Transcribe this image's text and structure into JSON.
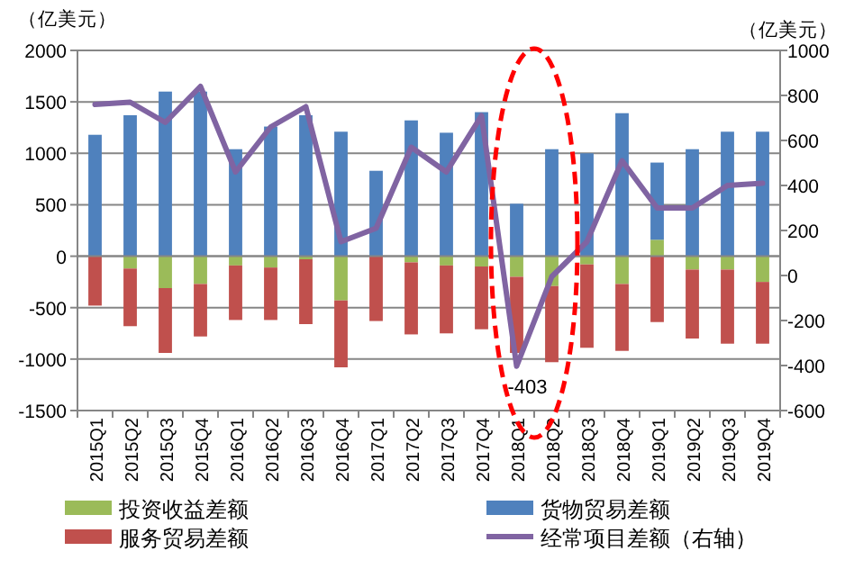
{
  "chart_data": {
    "type": "bar",
    "stacked": true,
    "ylabel": "（亿美元）",
    "y2label": "（亿美元）",
    "categories": [
      "2015Q1",
      "2015Q2",
      "2015Q3",
      "2015Q4",
      "2016Q1",
      "2016Q2",
      "2016Q3",
      "2016Q4",
      "2017Q1",
      "2017Q2",
      "2017Q3",
      "2017Q4",
      "2018Q1",
      "2018Q2",
      "2018Q3",
      "2018Q4",
      "2019Q1",
      "2019Q2",
      "2019Q3",
      "2019Q4"
    ],
    "series": [
      {
        "name": "投资收益差额",
        "color": "#9bbb59",
        "values": [
          null,
          -120,
          -310,
          -270,
          -90,
          -110,
          -30,
          -430,
          null,
          -60,
          -90,
          -100,
          -200,
          -290,
          -80,
          -270,
          160,
          -130,
          -130,
          -250
        ]
      },
      {
        "name": "货物贸易差额",
        "color": "#4f81bd",
        "values": [
          1180,
          1370,
          1600,
          1600,
          1040,
          1260,
          1370,
          1210,
          830,
          1320,
          1200,
          1400,
          510,
          1040,
          1000,
          1390,
          750,
          1040,
          1210,
          1210
        ]
      },
      {
        "name": "服务贸易差额",
        "color": "#c0504d",
        "values": [
          -480,
          -560,
          -630,
          -510,
          -530,
          -510,
          -630,
          -650,
          -630,
          -700,
          -660,
          -610,
          -740,
          -740,
          -810,
          -650,
          -640,
          -670,
          -720,
          -600
        ]
      },
      {
        "name": "经常项目差额（右轴）",
        "color": "#8064a2",
        "type": "line",
        "axis": "y2",
        "values": [
          760,
          770,
          680,
          840,
          460,
          660,
          750,
          150,
          210,
          570,
          460,
          710,
          -403,
          -5,
          150,
          510,
          300,
          300,
          400,
          410
        ],
        "value_labels": [
          null,
          null,
          null,
          null,
          null,
          null,
          null,
          null,
          null,
          null,
          null,
          null,
          "-403",
          null,
          null,
          null,
          null,
          null,
          null,
          null
        ]
      }
    ],
    "ylim": [
      -1500,
      2000
    ],
    "yticks": [
      -1500,
      -1000,
      -500,
      0,
      500,
      1000,
      1500,
      2000
    ],
    "y2lim": [
      -600,
      1000
    ],
    "y2ticks": [
      -600,
      -400,
      -200,
      0,
      200,
      400,
      600,
      800,
      1000
    ],
    "grid": "y",
    "legend": "bottom",
    "marker": "none",
    "line_style": "solid"
  }
}
